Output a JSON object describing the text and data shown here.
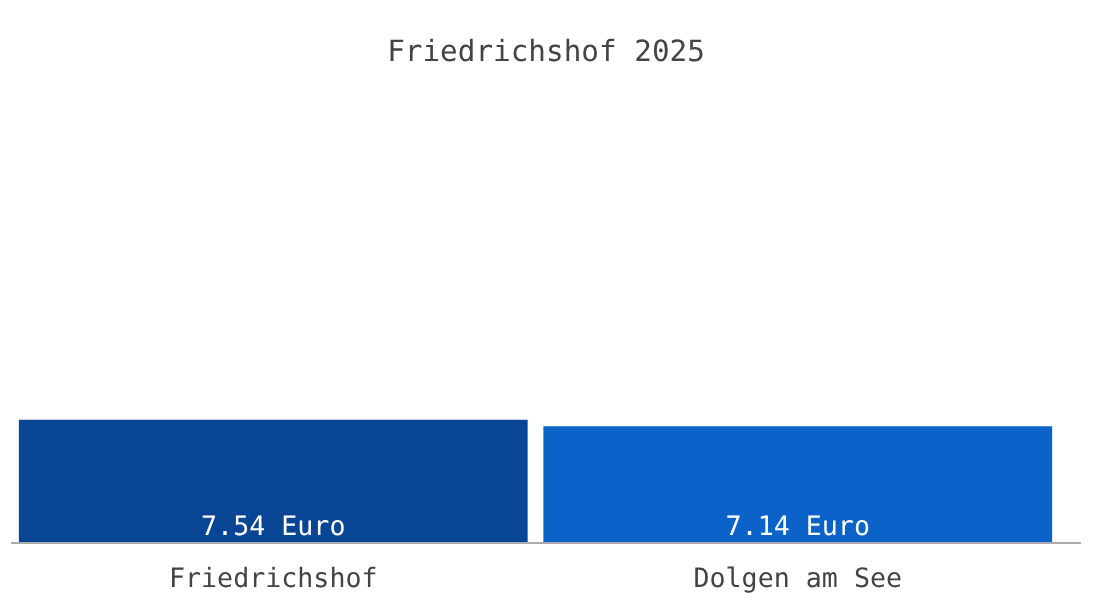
{
  "chart_data": {
    "type": "bar",
    "title": "Friedrichshof 2025",
    "categories": [
      "Friedrichshof",
      "Dolgen am See"
    ],
    "values": [
      7.54,
      7.14
    ],
    "colors": [
      "#084594",
      "#0b63c9"
    ],
    "value_labels": [
      "7.54 Euro",
      "7.14 Euro"
    ]
  }
}
